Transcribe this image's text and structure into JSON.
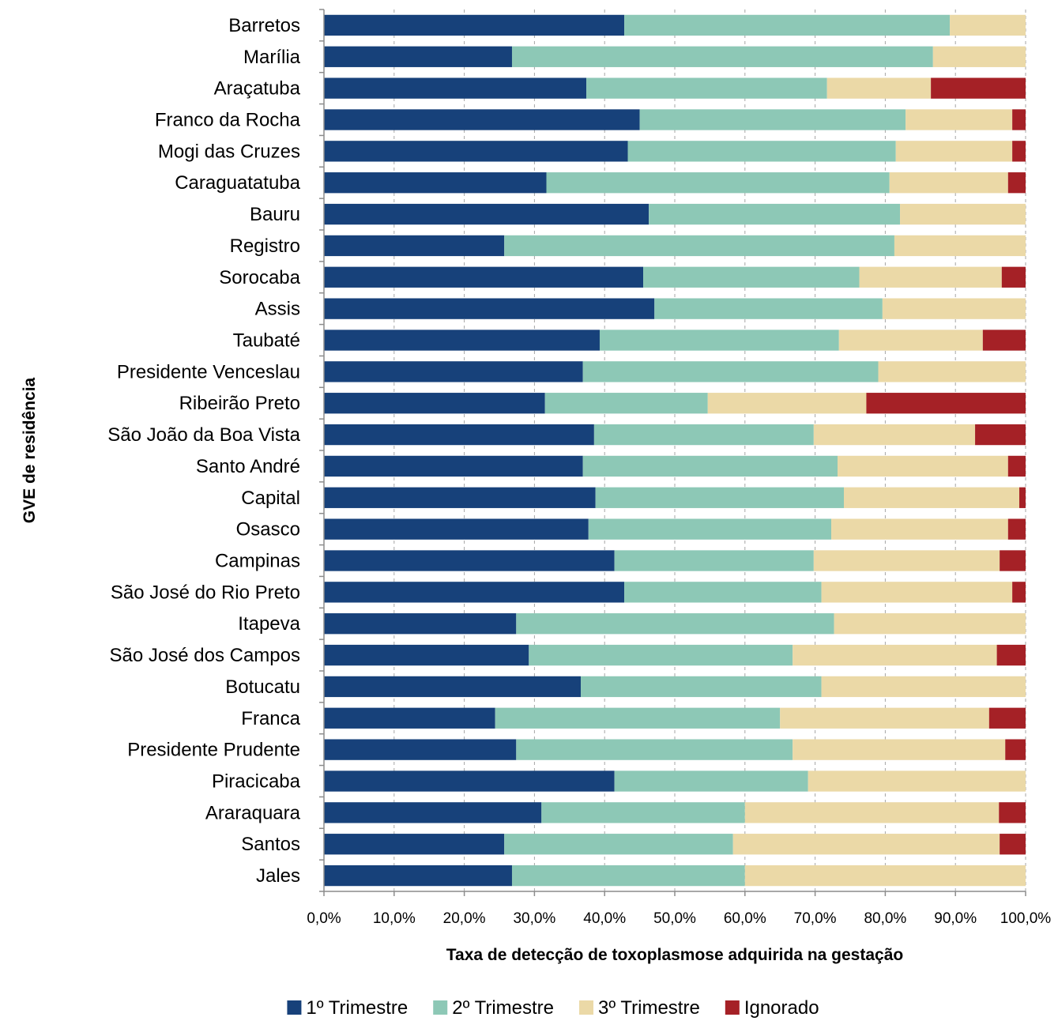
{
  "chart_data": {
    "type": "bar",
    "orientation": "horizontal",
    "stacked": true,
    "percent_stacked": true,
    "xlabel": "Taxa de detecção de toxoplasmose adquirida na gestação",
    "ylabel": "GVE  de residência",
    "xlim": [
      0,
      100
    ],
    "x_ticks": [
      "0,0%",
      "10,0%",
      "20,0%",
      "30,0%",
      "40,0%",
      "50,0%",
      "60,0%",
      "70,0%",
      "80,0%",
      "90,0%",
      "100,0%"
    ],
    "grid": "vertical dashed",
    "legend_position": "bottom",
    "categories": [
      "Barretos",
      "Marília",
      "Araçatuba",
      "Franco da Rocha",
      "Mogi das Cruzes",
      "Caraguatatuba",
      "Bauru",
      "Registro",
      "Sorocaba",
      "Assis",
      "Taubaté",
      "Presidente Venceslau",
      "Ribeirão Preto",
      "São João da Boa Vista",
      "Santo André",
      "Capital",
      "Osasco",
      "Campinas",
      "São José do Rio Preto",
      "Itapeva",
      "São José dos Campos",
      "Botucatu",
      "Franca",
      "Presidente Prudente",
      "Piracicaba",
      "Araraquara",
      "Santos",
      "Jales"
    ],
    "series": [
      {
        "name": "1º Trimestre",
        "color": "#17417a",
        "values": [
          42.8,
          26.8,
          37.4,
          45.0,
          43.3,
          31.7,
          46.3,
          25.7,
          45.5,
          47.1,
          39.3,
          36.9,
          31.5,
          38.5,
          36.9,
          38.7,
          37.7,
          41.4,
          42.8,
          27.4,
          29.2,
          36.6,
          24.4,
          27.4,
          41.4,
          31.0,
          25.7,
          26.8
        ]
      },
      {
        "name": "2º Trimestre",
        "color": "#8dc8b6",
        "values": [
          46.4,
          60.0,
          34.3,
          37.9,
          38.2,
          48.9,
          35.8,
          55.6,
          30.8,
          32.5,
          34.1,
          42.1,
          23.2,
          31.3,
          36.3,
          35.4,
          34.6,
          28.4,
          28.1,
          45.3,
          37.6,
          34.3,
          40.6,
          39.4,
          27.6,
          29.0,
          32.6,
          33.2
        ]
      },
      {
        "name": "3º Trimestre",
        "color": "#ebd9a7",
        "values": [
          10.8,
          13.2,
          14.8,
          15.2,
          16.6,
          16.9,
          17.9,
          18.7,
          20.3,
          20.4,
          20.5,
          21.0,
          22.6,
          23.0,
          24.3,
          25.0,
          25.2,
          26.5,
          27.2,
          27.3,
          29.1,
          29.1,
          29.8,
          30.3,
          31.0,
          36.2,
          38.0,
          40.0
        ]
      },
      {
        "name": "Ignorado",
        "color": "#a52126",
        "values": [
          0,
          0,
          13.5,
          1.9,
          1.9,
          2.5,
          0,
          0,
          3.4,
          0,
          6.1,
          0,
          22.7,
          7.2,
          2.5,
          0.9,
          2.5,
          3.7,
          1.9,
          0,
          4.1,
          0,
          5.2,
          2.9,
          0,
          3.8,
          3.7,
          0
        ]
      }
    ]
  }
}
